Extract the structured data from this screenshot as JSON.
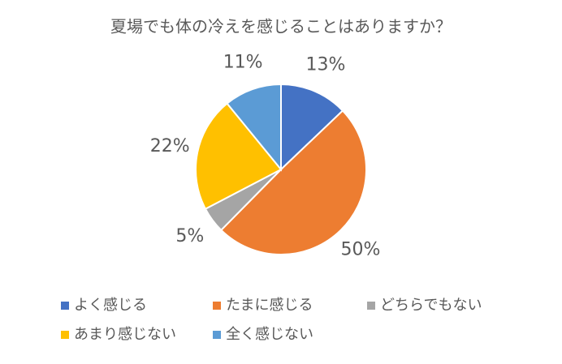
{
  "chart_data": {
    "type": "pie",
    "title": "夏場でも体の冷えを感じることはありますか？",
    "categories": [
      "よく感じる",
      "たまに感じる",
      "どちらでもない",
      "あまり感じない",
      "全く感じない"
    ],
    "values": [
      13,
      50,
      5,
      22,
      11
    ],
    "value_labels": [
      "13%",
      "50%",
      "5%",
      "22%",
      "11%"
    ],
    "colors": [
      "#4472c4",
      "#ed7d31",
      "#a5a5a5",
      "#ffc000",
      "#5b9bd5"
    ],
    "legend": "bottom"
  }
}
